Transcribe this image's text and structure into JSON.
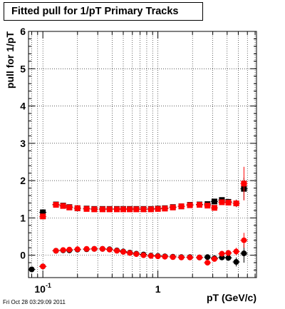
{
  "title": "Fitted pull for 1/pT  Primary Tracks",
  "footer": "Fri Oct 28 03:29:09 2011",
  "chart_data": {
    "type": "scatter",
    "title": "Fitted pull for 1/pT  Primary Tracks",
    "xlabel": "pT (GeV/c)",
    "ylabel": "pull for 1/pT",
    "xscale": "log",
    "xlim": [
      0.075,
      7.2
    ],
    "ylim": [
      -0.6,
      6
    ],
    "grid": true,
    "xtick_labels": [
      {
        "value": 0.1,
        "base": "10",
        "exp": "-1"
      },
      {
        "value": 1,
        "base": "1",
        "exp": ""
      }
    ],
    "ytick_labels": [
      0,
      1,
      2,
      3,
      4,
      5,
      6
    ],
    "series": [
      {
        "name": "",
        "color": "#000000",
        "marker": "circle",
        "points": [
          [
            0.08,
            -0.38
          ],
          [
            0.1,
            -0.3
          ],
          [
            0.13,
            0.12
          ],
          [
            0.15,
            0.13
          ],
          [
            0.17,
            0.13
          ],
          [
            0.2,
            0.15
          ],
          [
            0.24,
            0.16
          ],
          [
            0.28,
            0.17
          ],
          [
            0.33,
            0.17
          ],
          [
            0.38,
            0.16
          ],
          [
            0.44,
            0.13
          ],
          [
            0.5,
            0.1
          ],
          [
            0.57,
            0.07
          ],
          [
            0.65,
            0.04
          ],
          [
            0.75,
            0.02
          ],
          [
            0.87,
            -0.01
          ],
          [
            1.0,
            -0.02
          ],
          [
            1.15,
            -0.03
          ],
          [
            1.35,
            -0.04
          ],
          [
            1.6,
            -0.05
          ],
          [
            1.9,
            -0.05
          ],
          [
            2.3,
            -0.06
          ],
          [
            2.7,
            -0.05
          ],
          [
            3.1,
            -0.08
          ],
          [
            3.6,
            -0.06
          ],
          [
            4.1,
            -0.07
          ],
          [
            4.8,
            -0.18
          ],
          [
            5.6,
            0.05
          ]
        ],
        "errors": [
          0.03,
          0.03,
          0.02,
          0.02,
          0.02,
          0.02,
          0.02,
          0.02,
          0.02,
          0.02,
          0.02,
          0.02,
          0.02,
          0.02,
          0.02,
          0.02,
          0.02,
          0.02,
          0.02,
          0.02,
          0.03,
          0.03,
          0.04,
          0.05,
          0.06,
          0.08,
          0.12,
          0.25
        ]
      },
      {
        "name": "",
        "color": "#000000",
        "marker": "square",
        "points": [
          [
            0.1,
            1.15
          ],
          [
            0.13,
            1.36
          ],
          [
            0.15,
            1.33
          ],
          [
            0.17,
            1.29
          ],
          [
            0.2,
            1.26
          ],
          [
            0.24,
            1.25
          ],
          [
            0.28,
            1.24
          ],
          [
            0.33,
            1.24
          ],
          [
            0.38,
            1.24
          ],
          [
            0.44,
            1.24
          ],
          [
            0.5,
            1.24
          ],
          [
            0.57,
            1.24
          ],
          [
            0.65,
            1.24
          ],
          [
            0.75,
            1.24
          ],
          [
            0.87,
            1.24
          ],
          [
            1.0,
            1.25
          ],
          [
            1.15,
            1.26
          ],
          [
            1.35,
            1.29
          ],
          [
            1.6,
            1.31
          ],
          [
            1.9,
            1.35
          ],
          [
            2.3,
            1.36
          ],
          [
            2.7,
            1.37
          ],
          [
            3.1,
            1.44
          ],
          [
            3.6,
            1.48
          ],
          [
            4.1,
            1.43
          ],
          [
            4.8,
            1.39
          ],
          [
            5.6,
            1.78
          ]
        ],
        "errors": [
          0.03,
          0.02,
          0.02,
          0.02,
          0.02,
          0.02,
          0.02,
          0.02,
          0.02,
          0.02,
          0.02,
          0.02,
          0.02,
          0.02,
          0.02,
          0.02,
          0.02,
          0.02,
          0.02,
          0.03,
          0.03,
          0.04,
          0.05,
          0.07,
          0.08,
          0.1,
          0.3
        ]
      },
      {
        "name": "",
        "color": "#ff0000",
        "marker": "circle",
        "points": [
          [
            0.1,
            -0.3
          ],
          [
            0.13,
            0.12
          ],
          [
            0.15,
            0.14
          ],
          [
            0.17,
            0.15
          ],
          [
            0.2,
            0.16
          ],
          [
            0.24,
            0.17
          ],
          [
            0.28,
            0.17
          ],
          [
            0.33,
            0.17
          ],
          [
            0.38,
            0.15
          ],
          [
            0.44,
            0.12
          ],
          [
            0.5,
            0.09
          ],
          [
            0.57,
            0.06
          ],
          [
            0.65,
            0.03
          ],
          [
            0.75,
            0.0
          ],
          [
            0.87,
            -0.02
          ],
          [
            1.0,
            -0.03
          ],
          [
            1.15,
            -0.04
          ],
          [
            1.35,
            -0.05
          ],
          [
            1.6,
            -0.06
          ],
          [
            1.9,
            -0.06
          ],
          [
            2.3,
            -0.06
          ],
          [
            2.7,
            -0.2
          ],
          [
            3.1,
            -0.1
          ],
          [
            3.6,
            0.04
          ],
          [
            4.1,
            0.06
          ],
          [
            4.8,
            0.1
          ],
          [
            5.6,
            0.4
          ]
        ],
        "errors": [
          0.03,
          0.02,
          0.02,
          0.02,
          0.02,
          0.02,
          0.02,
          0.02,
          0.02,
          0.02,
          0.02,
          0.02,
          0.02,
          0.02,
          0.02,
          0.02,
          0.02,
          0.02,
          0.02,
          0.03,
          0.03,
          0.05,
          0.06,
          0.07,
          0.08,
          0.1,
          0.2
        ]
      },
      {
        "name": "",
        "color": "#ff0000",
        "marker": "square",
        "points": [
          [
            0.1,
            1.04
          ],
          [
            0.13,
            1.35
          ],
          [
            0.15,
            1.32
          ],
          [
            0.17,
            1.28
          ],
          [
            0.2,
            1.26
          ],
          [
            0.24,
            1.24
          ],
          [
            0.28,
            1.23
          ],
          [
            0.33,
            1.23
          ],
          [
            0.38,
            1.23
          ],
          [
            0.44,
            1.23
          ],
          [
            0.5,
            1.23
          ],
          [
            0.57,
            1.23
          ],
          [
            0.65,
            1.23
          ],
          [
            0.75,
            1.23
          ],
          [
            0.87,
            1.23
          ],
          [
            1.0,
            1.24
          ],
          [
            1.15,
            1.25
          ],
          [
            1.35,
            1.28
          ],
          [
            1.6,
            1.31
          ],
          [
            1.9,
            1.34
          ],
          [
            2.3,
            1.35
          ],
          [
            2.7,
            1.33
          ],
          [
            3.1,
            1.27
          ],
          [
            3.6,
            1.42
          ],
          [
            4.1,
            1.41
          ],
          [
            4.8,
            1.39
          ],
          [
            5.6,
            1.92
          ]
        ],
        "errors": [
          0.03,
          0.02,
          0.02,
          0.02,
          0.02,
          0.02,
          0.02,
          0.02,
          0.02,
          0.02,
          0.02,
          0.02,
          0.02,
          0.02,
          0.02,
          0.02,
          0.02,
          0.02,
          0.02,
          0.03,
          0.03,
          0.04,
          0.05,
          0.06,
          0.07,
          0.09,
          0.45
        ]
      }
    ]
  }
}
